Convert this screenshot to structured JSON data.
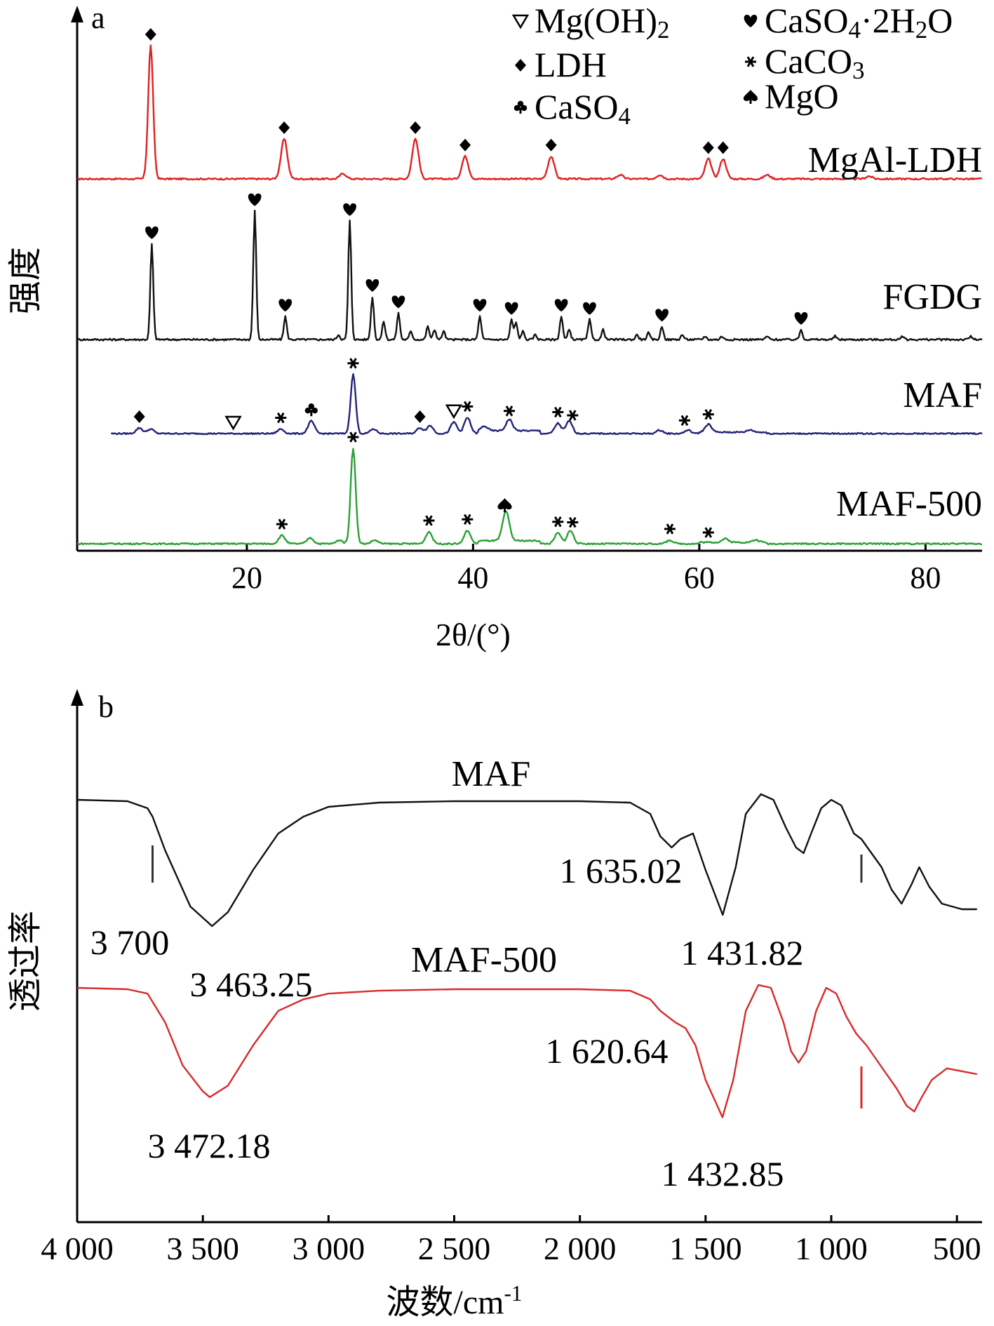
{
  "chart_data": [
    {
      "panel": "a",
      "type": "line",
      "xlabel": "2θ/(°)",
      "ylabel": "强度",
      "xlim": [
        5,
        85
      ],
      "xticks": [
        20,
        40,
        60,
        80
      ],
      "legend": {
        "placement": "top-right",
        "entries": [
          {
            "symbol": "triangle-down-open",
            "label": "Mg(OH)2"
          },
          {
            "symbol": "diamond",
            "label": "LDH"
          },
          {
            "symbol": "club",
            "label": "CaSO4"
          },
          {
            "symbol": "heart",
            "label": "CaSO4·2H2O"
          },
          {
            "symbol": "asterisk",
            "label": "CaCO3"
          },
          {
            "symbol": "spade",
            "label": "MgO"
          }
        ]
      },
      "series": [
        {
          "name": "MgAl-LDH",
          "color": "#e02020",
          "x_start": 5,
          "x_end": 85,
          "baseline": 0,
          "peaks": [
            [
              11.5,
              100
            ],
            [
              23.3,
              30
            ],
            [
              28.5,
              4
            ],
            [
              34.9,
              30
            ],
            [
              39.3,
              17
            ],
            [
              46.9,
              17
            ],
            [
              53,
              3
            ],
            [
              56.5,
              3
            ],
            [
              60.8,
              15
            ],
            [
              62.1,
              15
            ],
            [
              66,
              3
            ],
            [
              75,
              2
            ]
          ],
          "markers": [
            {
              "x": 11.5,
              "symbol": "diamond"
            },
            {
              "x": 23.3,
              "symbol": "diamond"
            },
            {
              "x": 34.9,
              "symbol": "diamond"
            },
            {
              "x": 39.3,
              "symbol": "diamond"
            },
            {
              "x": 46.9,
              "symbol": "diamond"
            },
            {
              "x": 60.8,
              "symbol": "diamond"
            },
            {
              "x": 62.1,
              "symbol": "diamond"
            }
          ]
        },
        {
          "name": "FGDG",
          "color": "#111111",
          "x_start": 5,
          "x_end": 85,
          "baseline": 0,
          "peaks": [
            [
              11.6,
              58
            ],
            [
              20.7,
              78
            ],
            [
              23.4,
              14
            ],
            [
              28.1,
              3
            ],
            [
              29.1,
              72
            ],
            [
              31.1,
              26
            ],
            [
              32.1,
              11
            ],
            [
              33.4,
              16
            ],
            [
              34.5,
              5
            ],
            [
              36,
              8
            ],
            [
              36.6,
              6
            ],
            [
              37.4,
              5
            ],
            [
              40.6,
              14
            ],
            [
              43.4,
              12
            ],
            [
              43.8,
              10
            ],
            [
              44.4,
              5
            ],
            [
              45.5,
              3
            ],
            [
              47.8,
              14
            ],
            [
              48.5,
              6
            ],
            [
              50.3,
              12
            ],
            [
              51.5,
              6
            ],
            [
              54.5,
              3
            ],
            [
              55.5,
              4
            ],
            [
              56.7,
              8
            ],
            [
              58.5,
              3
            ],
            [
              60.5,
              2
            ],
            [
              62,
              2
            ],
            [
              66,
              2
            ],
            [
              69,
              6
            ],
            [
              72,
              2
            ],
            [
              78,
              2
            ],
            [
              84,
              2
            ]
          ],
          "markers": [
            {
              "x": 11.6,
              "symbol": "heart"
            },
            {
              "x": 20.7,
              "symbol": "heart"
            },
            {
              "x": 23.4,
              "symbol": "heart"
            },
            {
              "x": 29.1,
              "symbol": "heart"
            },
            {
              "x": 31.1,
              "symbol": "heart"
            },
            {
              "x": 33.4,
              "symbol": "heart"
            },
            {
              "x": 40.6,
              "symbol": "heart"
            },
            {
              "x": 43.4,
              "symbol": "heart"
            },
            {
              "x": 47.8,
              "symbol": "heart"
            },
            {
              "x": 50.3,
              "symbol": "heart"
            },
            {
              "x": 56.7,
              "symbol": "heart"
            },
            {
              "x": 69,
              "symbol": "heart"
            }
          ]
        },
        {
          "name": "MAF",
          "color": "#22227a",
          "x_start": 8,
          "x_end": 85,
          "baseline": 0,
          "peaks": [
            [
              10.5,
              5
            ],
            [
              11.5,
              4
            ],
            [
              23,
              4
            ],
            [
              25.7,
              11
            ],
            [
              29.4,
              52
            ],
            [
              31.2,
              4
            ],
            [
              35.3,
              5
            ],
            [
              36.2,
              7
            ],
            [
              38.3,
              10
            ],
            [
              39.5,
              14
            ],
            [
              41,
              4
            ],
            [
              43.2,
              10
            ],
            [
              47.5,
              9
            ],
            [
              48.5,
              11
            ],
            [
              56.5,
              3
            ],
            [
              59,
              3
            ],
            [
              60.8,
              7
            ],
            [
              64.5,
              2
            ]
          ],
          "markers": [
            {
              "x": 10.5,
              "symbol": "diamond"
            },
            {
              "x": 18.8,
              "symbol": "triangle-down-open"
            },
            {
              "x": 23,
              "symbol": "asterisk"
            },
            {
              "x": 25.7,
              "symbol": "club"
            },
            {
              "x": 29.4,
              "symbol": "asterisk"
            },
            {
              "x": 35.3,
              "symbol": "diamond"
            },
            {
              "x": 38.3,
              "symbol": "triangle-down-open"
            },
            {
              "x": 39.5,
              "symbol": "asterisk"
            },
            {
              "x": 43.2,
              "symbol": "asterisk"
            },
            {
              "x": 47.5,
              "symbol": "asterisk"
            },
            {
              "x": 48.8,
              "symbol": "asterisk"
            },
            {
              "x": 58.7,
              "symbol": "asterisk"
            },
            {
              "x": 60.8,
              "symbol": "asterisk"
            }
          ]
        },
        {
          "name": "MAF-500",
          "color": "#2aa033",
          "x_start": 5,
          "x_end": 85,
          "baseline": 0,
          "peaks": [
            [
              23.1,
              7
            ],
            [
              25.6,
              5
            ],
            [
              28.2,
              3
            ],
            [
              29.4,
              80
            ],
            [
              31.3,
              3
            ],
            [
              36.1,
              10
            ],
            [
              39.5,
              11
            ],
            [
              42.8,
              12
            ],
            [
              43,
              14
            ],
            [
              47.5,
              9
            ],
            [
              48.6,
              11
            ],
            [
              57.4,
              3
            ],
            [
              62.3,
              3
            ],
            [
              65,
              2
            ]
          ],
          "markers": [
            {
              "x": 23.1,
              "symbol": "asterisk"
            },
            {
              "x": 29.4,
              "symbol": "asterisk"
            },
            {
              "x": 36.1,
              "symbol": "asterisk"
            },
            {
              "x": 39.5,
              "symbol": "asterisk"
            },
            {
              "x": 42.8,
              "symbol": "spade"
            },
            {
              "x": 47.5,
              "symbol": "asterisk"
            },
            {
              "x": 48.8,
              "symbol": "asterisk"
            },
            {
              "x": 57.4,
              "symbol": "asterisk"
            },
            {
              "x": 60.8,
              "symbol": "asterisk"
            }
          ]
        }
      ]
    },
    {
      "panel": "b",
      "type": "line",
      "xlabel": "波数/cm-1",
      "ylabel": "透过率",
      "xlim": [
        4000,
        400
      ],
      "xticks": [
        4000,
        3500,
        3000,
        2500,
        2000,
        1500,
        1000,
        500
      ],
      "xtick_labels": [
        "4 000",
        "3 500",
        "3 000",
        "2 500",
        "2 000",
        "1 500",
        "1 000",
        "500"
      ],
      "series": [
        {
          "name": "MAF",
          "color": "#111111",
          "points": [
            [
              4000,
              100
            ],
            [
              3800,
              99.5
            ],
            [
              3720,
              97
            ],
            [
              3700,
              94
            ],
            [
              3650,
              82
            ],
            [
              3550,
              62
            ],
            [
              3463.25,
              55
            ],
            [
              3400,
              60
            ],
            [
              3300,
              75
            ],
            [
              3200,
              88
            ],
            [
              3100,
              94
            ],
            [
              3000,
              97.5
            ],
            [
              2800,
              99
            ],
            [
              2500,
              99.5
            ],
            [
              2000,
              99.5
            ],
            [
              1800,
              99
            ],
            [
              1720,
              95
            ],
            [
              1680,
              87
            ],
            [
              1635.02,
              83
            ],
            [
              1600,
              86
            ],
            [
              1550,
              88
            ],
            [
              1500,
              75
            ],
            [
              1431.82,
              59
            ],
            [
              1380,
              76
            ],
            [
              1340,
              95
            ],
            [
              1280,
              102
            ],
            [
              1230,
              100
            ],
            [
              1180,
              90
            ],
            [
              1140,
              83
            ],
            [
              1110,
              81
            ],
            [
              1080,
              88
            ],
            [
              1040,
              97
            ],
            [
              1000,
              100
            ],
            [
              960,
              98
            ],
            [
              910,
              88
            ],
            [
              880,
              86
            ],
            [
              840,
              81
            ],
            [
              800,
              76
            ],
            [
              760,
              68
            ],
            [
              720,
              63
            ],
            [
              680,
              70
            ],
            [
              650,
              76
            ],
            [
              610,
              69
            ],
            [
              560,
              63
            ],
            [
              520,
              62
            ],
            [
              480,
              61
            ],
            [
              420,
              61
            ]
          ],
          "annotations": [
            {
              "text": "3 700",
              "x": 3700
            },
            {
              "text": "3 463.25",
              "x": 3463.25
            },
            {
              "text": "1 635.02",
              "x": 1635.02
            },
            {
              "text": "1 431.82",
              "x": 1431.82
            }
          ]
        },
        {
          "name": "MAF-500",
          "color": "#d82a2a",
          "points": [
            [
              4000,
              100
            ],
            [
              3800,
              99.5
            ],
            [
              3720,
              98
            ],
            [
              3650,
              88
            ],
            [
              3580,
              73
            ],
            [
              3500,
              64
            ],
            [
              3472.18,
              62
            ],
            [
              3400,
              66
            ],
            [
              3300,
              80
            ],
            [
              3200,
              92
            ],
            [
              3100,
              96
            ],
            [
              3000,
              98
            ],
            [
              2800,
              99
            ],
            [
              2500,
              99.5
            ],
            [
              2000,
              99.5
            ],
            [
              1800,
              99
            ],
            [
              1720,
              96
            ],
            [
              1680,
              92
            ],
            [
              1620.64,
              88
            ],
            [
              1580,
              86
            ],
            [
              1540,
              80
            ],
            [
              1500,
              68
            ],
            [
              1432.85,
              55
            ],
            [
              1390,
              68
            ],
            [
              1340,
              92
            ],
            [
              1290,
              101
            ],
            [
              1240,
              100
            ],
            [
              1190,
              88
            ],
            [
              1160,
              78
            ],
            [
              1130,
              74
            ],
            [
              1100,
              78
            ],
            [
              1060,
              92
            ],
            [
              1020,
              100
            ],
            [
              980,
              98
            ],
            [
              940,
              90
            ],
            [
              900,
              84
            ],
            [
              860,
              80
            ],
            [
              820,
              75
            ],
            [
              780,
              70
            ],
            [
              740,
              65
            ],
            [
              700,
              59
            ],
            [
              670,
              57
            ],
            [
              640,
              62
            ],
            [
              600,
              68
            ],
            [
              540,
              72
            ],
            [
              480,
              71
            ],
            [
              420,
              70
            ]
          ],
          "annotations": [
            {
              "text": "3 472.18",
              "x": 3472.18
            },
            {
              "text": "1 620.64",
              "x": 1620.64
            },
            {
              "text": "1 432.85",
              "x": 1432.85
            }
          ]
        }
      ]
    }
  ],
  "panel_labels": {
    "a": "a",
    "b": "b"
  },
  "legend_text": {
    "mgoh2": "Mg(OH)2",
    "ldh": "LDH",
    "caso4": "CaSO4",
    "gypsum": "CaSO4·2H2O",
    "caco3": "CaCO3",
    "mgo": "MgO"
  }
}
